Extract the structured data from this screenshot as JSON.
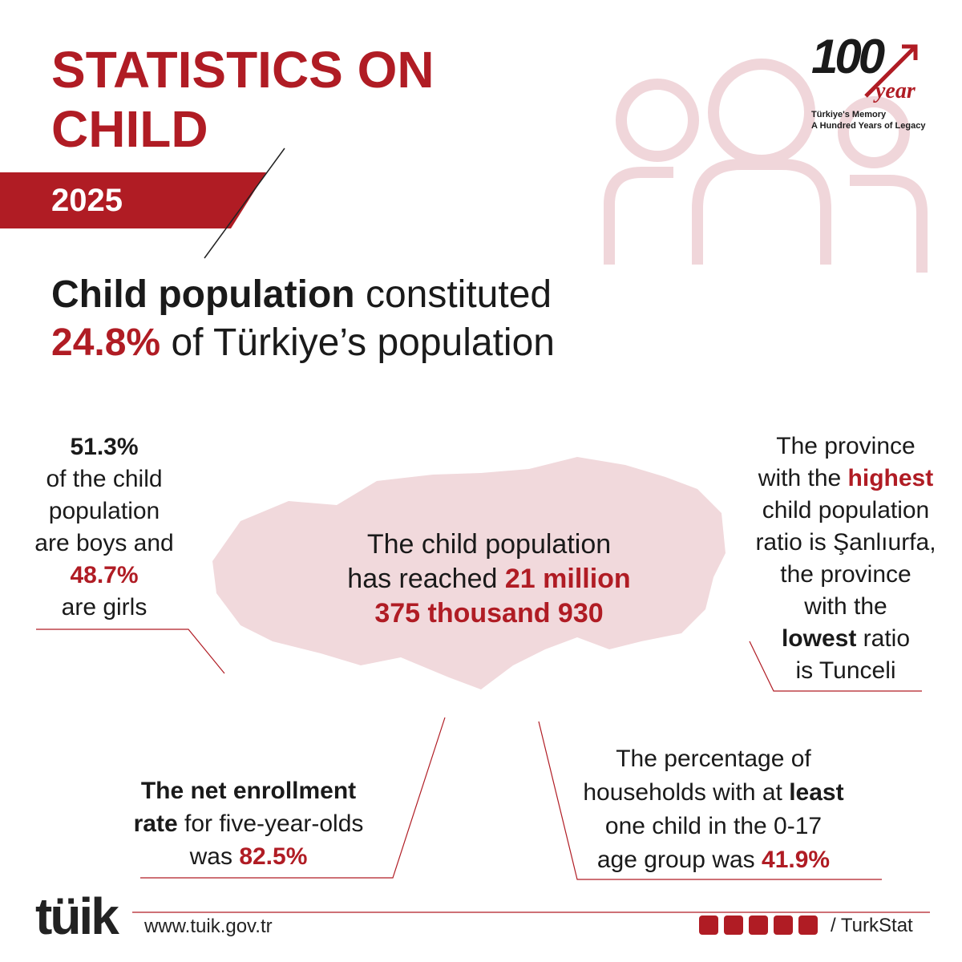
{
  "header": {
    "title": [
      "STATISTICS ON",
      "CHILD"
    ],
    "year": "2025"
  },
  "badge": {
    "number": "100",
    "word": "year",
    "tagline": [
      "Türkiye's Memory",
      "A Hundred Years of Legacy"
    ]
  },
  "headline": {
    "line1": [
      "Child population",
      "constituted"
    ],
    "line2": [
      "24.8%",
      "of Türkiye’s population"
    ]
  },
  "gender": [
    "51.3%",
    "of the child",
    "population",
    "are boys and",
    "48.7%",
    "are girls"
  ],
  "total": {
    "line1": "The child population",
    "line2": [
      "has reached",
      "21 million"
    ],
    "line3": "375 thousand 930"
  },
  "province": [
    "The province",
    "with the",
    "highest",
    "child population",
    "ratio is Şanlıurfa,",
    "the province",
    "with the",
    "lowest",
    "ratio",
    "is Tunceli"
  ],
  "enrollment": [
    "The net enrollment",
    "rate",
    "for five-year-olds",
    "was",
    "82.5%"
  ],
  "households": [
    "The percentage of",
    "households with at",
    "least",
    "one child in the 0-17",
    "age group was",
    "41.9%"
  ],
  "footer": {
    "logo": "tüik",
    "url": "www.tuik.gov.tr",
    "handle": "/ TurkStat"
  }
}
